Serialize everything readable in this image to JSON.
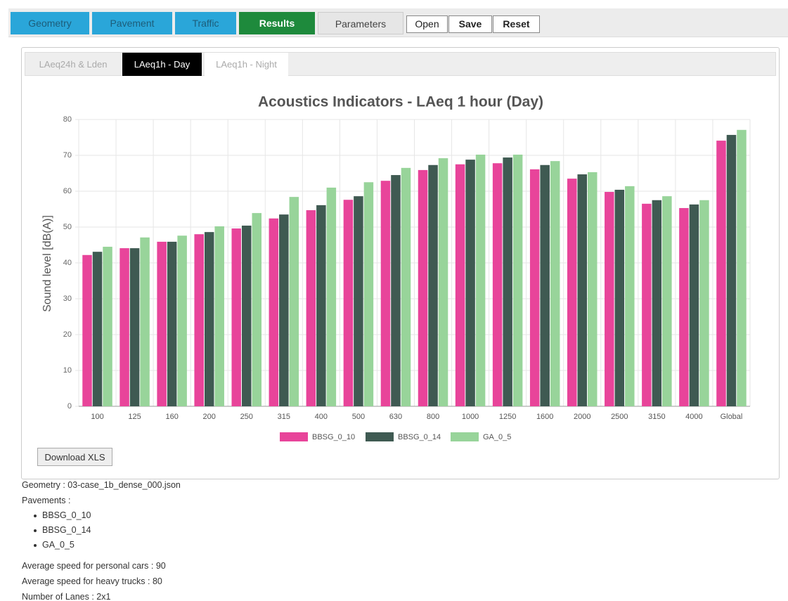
{
  "nav": {
    "tabs": [
      "Geometry",
      "Pavement",
      "Traffic",
      "Results",
      "Parameters"
    ],
    "buttons": [
      "Open",
      "Save",
      "Reset"
    ]
  },
  "subtabs": [
    "LAeq24h & Lden",
    "LAeq1h - Day",
    "LAeq1h - Night"
  ],
  "chart_data": {
    "type": "bar",
    "title": "Acoustics Indicators - LAeq 1 hour (Day)",
    "y_label": "Sound level [dB(A)]",
    "categories": [
      "100",
      "125",
      "160",
      "200",
      "250",
      "315",
      "400",
      "500",
      "630",
      "800",
      "1000",
      "1250",
      "1600",
      "2000",
      "2500",
      "3150",
      "4000",
      "Global"
    ],
    "series": [
      {
        "name": "BBSG_0_10",
        "color": "#e8449a",
        "values": [
          42.2,
          44.1,
          45.9,
          48,
          49.6,
          52.4,
          54.7,
          57.6,
          62.9,
          65.9,
          67.5,
          67.8,
          66.1,
          63.5,
          59.8,
          56.5,
          55.3,
          74.1
        ]
      },
      {
        "name": "BBSG_0_14",
        "color": "#3f5a52",
        "values": [
          43.1,
          44.1,
          45.9,
          48.6,
          50.4,
          53.5,
          56.1,
          58.6,
          64.5,
          67.3,
          68.8,
          69.4,
          67.3,
          64.7,
          60.4,
          57.5,
          56.3,
          75.7
        ]
      },
      {
        "name": "GA_0_5",
        "color": "#98d49a",
        "values": [
          44.5,
          47.1,
          47.6,
          50.2,
          53.9,
          58.4,
          61,
          62.5,
          66.5,
          69.2,
          70.2,
          70.2,
          68.4,
          65.3,
          61.4,
          58.6,
          57.5,
          77.1
        ]
      }
    ],
    "ylim": [
      0,
      80
    ],
    "yticks": [
      0,
      10,
      20,
      30,
      40,
      50,
      60,
      70,
      80
    ],
    "grid": true,
    "legend": "bottom"
  },
  "download_button": "Download XLS",
  "info": {
    "geometry": "Geometry : 03-case_1b_dense_000.json",
    "pavements_label": "Pavements :",
    "pavements": [
      "BBSG_0_10",
      "BBSG_0_14",
      "GA_0_5"
    ],
    "lines": [
      "Average speed for personal cars : 90",
      "Average speed for heavy trucks : 80",
      "Number of Lanes : 2x1"
    ]
  }
}
